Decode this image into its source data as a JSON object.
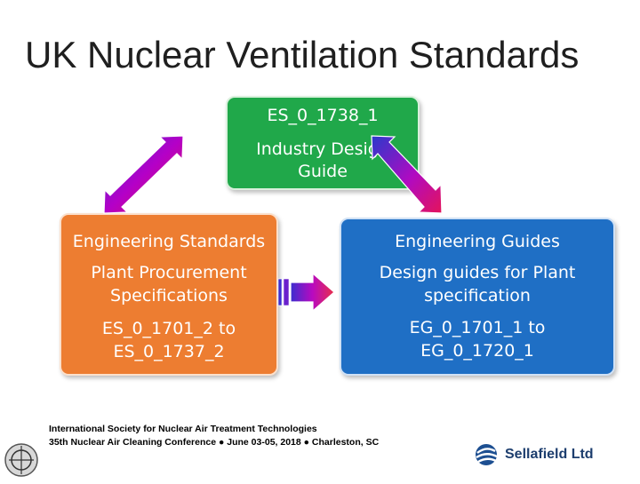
{
  "title": "UK Nuclear Ventilation Standards",
  "top_box": {
    "line1": "ES_0_1738_1",
    "line2": "Industry Design",
    "line3": "Guide",
    "color": "#20a84a"
  },
  "left_box": {
    "heading": "Engineering Standards",
    "line1": "Plant Procurement",
    "line2": "Specifications",
    "line3": "ES_0_1701_2 to",
    "line4": "ES_0_1737_2",
    "color": "#ed7d31"
  },
  "right_box": {
    "heading": "Engineering Guides",
    "line1": "Design guides for Plant",
    "line2": "specification",
    "line3": "EG_0_1701_1 to",
    "line4": "EG_0_1720_1",
    "color": "#1f6fc5"
  },
  "footer": {
    "line1": "International Society for Nuclear Air Treatment Technologies",
    "line2": "35th Nuclear Air Cleaning Conference ● June 03-05, 2018 ● Charleston, SC"
  },
  "logo": {
    "text": "Sellafield Ltd"
  },
  "icons": [
    "double-arrow-icon",
    "right-arrow-icon",
    "globe-icon",
    "conference-logo-icon"
  ]
}
